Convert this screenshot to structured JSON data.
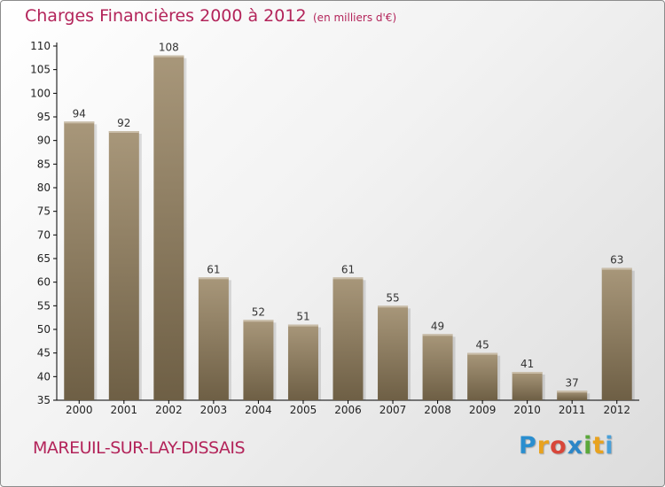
{
  "header": {
    "title": "Charges Financières 2000 à 2012",
    "subtitle": "(en milliers d'€)"
  },
  "footer": {
    "town": "MAREUIL-SUR-LAY-DISSAIS",
    "logo_letters": [
      "P",
      "r",
      "o",
      "x",
      "i",
      "t",
      "i"
    ],
    "logo_colors": [
      "#2a8ecf",
      "#e8a21f",
      "#d8463a",
      "#2c86c7",
      "#5aa83a",
      "#e8a21f",
      "#4aa0d9"
    ]
  },
  "colors": {
    "title": "#b3245a",
    "bar_light": "#a8977a",
    "bar_dark": "#6e5f45",
    "bar_top": "#c9bda8",
    "label": "#333333",
    "axis": "#000000"
  },
  "chart_data": {
    "type": "bar",
    "title": "Charges Financières 2000 à 2012",
    "subtitle": "(en milliers d'€)",
    "categories": [
      "2000",
      "2001",
      "2002",
      "2003",
      "2004",
      "2005",
      "2006",
      "2007",
      "2008",
      "2009",
      "2010",
      "2011",
      "2012"
    ],
    "values": [
      94,
      92,
      108,
      61,
      52,
      51,
      61,
      55,
      49,
      45,
      41,
      37,
      63
    ],
    "ylim": [
      35,
      110
    ],
    "yticks": [
      35,
      40,
      45,
      50,
      55,
      60,
      65,
      70,
      75,
      80,
      85,
      90,
      95,
      100,
      105,
      110
    ],
    "xlabel": "",
    "ylabel": "",
    "grid": false,
    "data_labels": true
  }
}
